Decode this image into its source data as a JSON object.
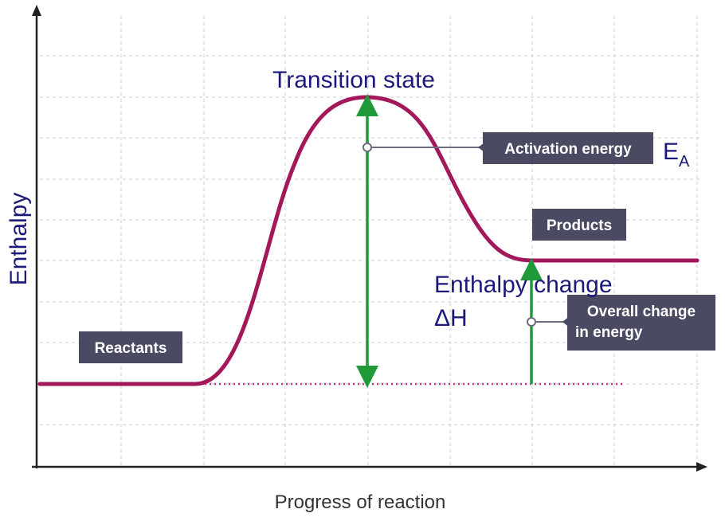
{
  "axes": {
    "ylabel": "Enthalpy",
    "xlabel": "Progress of reaction"
  },
  "labels": {
    "transition_state": "Transition state",
    "activation_energy": "Activation energy",
    "ea_main": "E",
    "ea_sub": "A",
    "products": "Products",
    "reactants": "Reactants",
    "enthalpy_change": "Enthalpy change",
    "delta_h": "ΔH",
    "overall_line1": "Overall change",
    "overall_line2": "in energy"
  },
  "colors": {
    "curve": "#a3175b",
    "arrow": "#1e9a3a",
    "label_box": "#4a4a63",
    "label_text": "#ffffff",
    "annotation_text": "#1b1a7a",
    "axis": "#222222",
    "grid": "#c9cad6",
    "baseline": "#d1307a"
  }
}
